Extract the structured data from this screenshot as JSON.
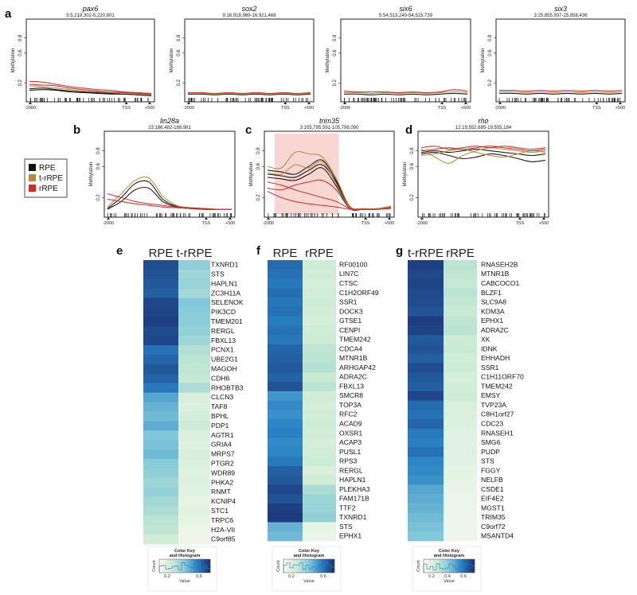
{
  "figure": {
    "panel_labels": {
      "a": "a",
      "b": "b",
      "c": "c",
      "d": "d",
      "e": "e",
      "f": "f",
      "g": "g"
    },
    "legend": [
      {
        "label": "RPE",
        "color": "#111111"
      },
      {
        "label": "t-rRPE",
        "color": "#b8893a"
      },
      {
        "label": "rRPE",
        "color": "#c8302c"
      }
    ]
  },
  "chart_data": [
    {
      "type": "line",
      "title": "pax6",
      "subtitle": "5:5,218,302-5,220,801",
      "ylabel": "Methylation",
      "yticks": [
        "0.2",
        "0.6",
        "0.8"
      ],
      "ylim": [
        0,
        1
      ],
      "xticks": [
        "-2000",
        "TSS",
        "+500"
      ],
      "highlight": null,
      "series": [
        {
          "name": "RPE",
          "values": [
            0.12,
            0.13,
            0.11,
            0.09,
            0.08,
            0.07,
            0.06,
            0.05,
            0.04,
            0.03
          ]
        },
        {
          "name": "RPE",
          "values": [
            0.1,
            0.11,
            0.1,
            0.08,
            0.07,
            0.06,
            0.05,
            0.05,
            0.04,
            0.03
          ]
        },
        {
          "name": "t-rRPE",
          "values": [
            0.16,
            0.15,
            0.13,
            0.11,
            0.09,
            0.08,
            0.07,
            0.06,
            0.05,
            0.04
          ]
        },
        {
          "name": "rRPE",
          "values": [
            0.22,
            0.21,
            0.18,
            0.15,
            0.13,
            0.11,
            0.1,
            0.08,
            0.07,
            0.06
          ]
        },
        {
          "name": "rRPE",
          "values": [
            0.18,
            0.17,
            0.16,
            0.13,
            0.11,
            0.09,
            0.08,
            0.07,
            0.06,
            0.05
          ]
        }
      ]
    },
    {
      "type": "line",
      "title": "sox2",
      "subtitle": "9:16,918,969-16,921,468",
      "ylabel": "Methylation",
      "yticks": [
        "0.2",
        "0.6",
        "0.8"
      ],
      "ylim": [
        0,
        1
      ],
      "xticks": [
        "-2000",
        "TSS",
        "+500"
      ],
      "highlight": null,
      "series": [
        {
          "name": "RPE",
          "values": [
            0.05,
            0.05,
            0.04,
            0.05,
            0.04,
            0.05,
            0.04,
            0.05,
            0.04,
            0.05
          ]
        },
        {
          "name": "t-rRPE",
          "values": [
            0.06,
            0.06,
            0.05,
            0.06,
            0.05,
            0.06,
            0.05,
            0.06,
            0.05,
            0.06
          ]
        },
        {
          "name": "rRPE",
          "values": [
            0.07,
            0.07,
            0.06,
            0.07,
            0.06,
            0.07,
            0.06,
            0.07,
            0.06,
            0.07
          ]
        }
      ]
    },
    {
      "type": "line",
      "title": "six6",
      "subtitle": "5:54,513,240-54,515,739",
      "ylabel": "Methylation",
      "yticks": [
        "0.2",
        "0.6",
        "0.8"
      ],
      "ylim": [
        0,
        1
      ],
      "xticks": [
        "-2000",
        "TSS",
        "+500"
      ],
      "highlight": null,
      "series": [
        {
          "name": "RPE",
          "values": [
            0.05,
            0.05,
            0.04,
            0.05,
            0.04,
            0.05,
            0.04,
            0.05,
            0.06,
            0.05
          ]
        },
        {
          "name": "t-rRPE",
          "values": [
            0.07,
            0.07,
            0.06,
            0.07,
            0.06,
            0.07,
            0.06,
            0.07,
            0.08,
            0.07
          ]
        },
        {
          "name": "rRPE",
          "values": [
            0.09,
            0.08,
            0.08,
            0.08,
            0.07,
            0.08,
            0.07,
            0.08,
            0.11,
            0.09
          ]
        }
      ]
    },
    {
      "type": "line",
      "title": "six3",
      "subtitle": "3:25,855,937-25,858,436",
      "ylabel": "Methylation",
      "yticks": [
        "0.2",
        "0.6",
        "0.8"
      ],
      "ylim": [
        0,
        1
      ],
      "xticks": [
        "-2000",
        "TSS",
        "+500"
      ],
      "highlight": null,
      "series": [
        {
          "name": "RPE",
          "values": [
            0.06,
            0.06,
            0.05,
            0.06,
            0.05,
            0.06,
            0.05,
            0.06,
            0.05,
            0.06
          ]
        },
        {
          "name": "t-rRPE",
          "values": [
            0.08,
            0.08,
            0.07,
            0.08,
            0.07,
            0.08,
            0.07,
            0.08,
            0.07,
            0.08
          ]
        },
        {
          "name": "rRPE",
          "values": [
            0.1,
            0.1,
            0.09,
            0.1,
            0.09,
            0.1,
            0.09,
            0.1,
            0.09,
            0.1
          ]
        }
      ]
    },
    {
      "type": "line",
      "title": "lin28a",
      "subtitle": "23:186,482-188,981",
      "ylabel": "Methylation",
      "yticks": [
        "0.2",
        "0.6",
        "0.8"
      ],
      "ylim": [
        0,
        1
      ],
      "xticks": [
        "-2000",
        "TSS",
        "+500"
      ],
      "highlight": null,
      "series": [
        {
          "name": "RPE",
          "values": [
            0.05,
            0.15,
            0.3,
            0.32,
            0.15,
            0.08,
            0.06,
            0.05,
            0.05,
            0.05
          ]
        },
        {
          "name": "RPE",
          "values": [
            0.06,
            0.2,
            0.38,
            0.4,
            0.18,
            0.09,
            0.06,
            0.05,
            0.05,
            0.05
          ]
        },
        {
          "name": "t-rRPE",
          "values": [
            0.08,
            0.25,
            0.42,
            0.45,
            0.22,
            0.1,
            0.07,
            0.06,
            0.05,
            0.05
          ]
        },
        {
          "name": "rRPE",
          "values": [
            0.25,
            0.2,
            0.15,
            0.12,
            0.1,
            0.08,
            0.07,
            0.06,
            0.05,
            0.05
          ]
        },
        {
          "name": "rRPE",
          "values": [
            0.18,
            0.15,
            0.12,
            0.1,
            0.08,
            0.07,
            0.06,
            0.05,
            0.05,
            0.05
          ]
        }
      ]
    },
    {
      "type": "line",
      "title": "trim35",
      "subtitle": "3:105,795,591-105,798,090",
      "ylabel": "Methylation",
      "yticks": [
        "0.2",
        "0.6",
        "0.8"
      ],
      "ylim": [
        0,
        1
      ],
      "xticks": [
        "-2000",
        "TSS",
        "+500"
      ],
      "highlight": {
        "from": 0.5,
        "to": 5.2
      },
      "series": [
        {
          "name": "RPE",
          "values": [
            0.55,
            0.53,
            0.5,
            0.6,
            0.68,
            0.42,
            0.08,
            0.05,
            0.05,
            0.08
          ]
        },
        {
          "name": "RPE",
          "values": [
            0.5,
            0.48,
            0.46,
            0.55,
            0.62,
            0.4,
            0.07,
            0.05,
            0.05,
            0.08
          ]
        },
        {
          "name": "RPE",
          "values": [
            0.46,
            0.44,
            0.42,
            0.5,
            0.58,
            0.35,
            0.06,
            0.05,
            0.05,
            0.07
          ]
        },
        {
          "name": "t-rRPE",
          "values": [
            0.6,
            0.58,
            0.78,
            0.76,
            0.72,
            0.45,
            0.09,
            0.06,
            0.06,
            0.09
          ]
        },
        {
          "name": "t-rRPE",
          "values": [
            0.52,
            0.5,
            0.62,
            0.58,
            0.66,
            0.38,
            0.07,
            0.05,
            0.05,
            0.08
          ]
        },
        {
          "name": "rRPE",
          "values": [
            0.4,
            0.36,
            0.3,
            0.25,
            0.2,
            0.15,
            0.06,
            0.05,
            0.05,
            0.07
          ]
        },
        {
          "name": "rRPE",
          "values": [
            0.28,
            0.2,
            0.15,
            0.12,
            0.1,
            0.08,
            0.05,
            0.05,
            0.05,
            0.06
          ]
        },
        {
          "name": "rRPE",
          "values": [
            0.32,
            0.3,
            0.36,
            0.4,
            0.42,
            0.3,
            0.06,
            0.05,
            0.05,
            0.07
          ]
        }
      ]
    },
    {
      "type": "line",
      "title": "rho",
      "subtitle": "12:19,552,685-19,555,184",
      "ylabel": "Methylation",
      "yticks": [
        "0.2",
        "0.6",
        "0.8"
      ],
      "ylim": [
        0,
        1
      ],
      "xticks": [
        "-2000",
        "TSS",
        "+500"
      ],
      "highlight": null,
      "series": [
        {
          "name": "RPE",
          "values": [
            0.76,
            0.78,
            0.74,
            0.7,
            0.72,
            0.76,
            0.74,
            0.7,
            0.66,
            0.68
          ]
        },
        {
          "name": "RPE",
          "values": [
            0.78,
            0.8,
            0.78,
            0.8,
            0.82,
            0.8,
            0.78,
            0.76,
            0.74,
            0.76
          ]
        },
        {
          "name": "t-rRPE",
          "values": [
            0.82,
            0.72,
            0.64,
            0.74,
            0.8,
            0.84,
            0.82,
            0.8,
            0.78,
            0.8
          ]
        },
        {
          "name": "t-rRPE",
          "values": [
            0.74,
            0.76,
            0.8,
            0.82,
            0.78,
            0.74,
            0.72,
            0.76,
            0.8,
            0.78
          ]
        },
        {
          "name": "rRPE",
          "values": [
            0.8,
            0.82,
            0.84,
            0.82,
            0.84,
            0.86,
            0.84,
            0.82,
            0.8,
            0.82
          ]
        },
        {
          "name": "rRPE",
          "values": [
            0.84,
            0.86,
            0.82,
            0.84,
            0.86,
            0.84,
            0.86,
            0.84,
            0.82,
            0.84
          ]
        }
      ]
    },
    {
      "type": "heatmap",
      "columns": [
        "RPE",
        "t-rRPE"
      ],
      "rows": [
        "TXNRD1",
        "STS",
        "HAPLN1",
        "ZC3H11A",
        "SELENOK",
        "PIK3CD",
        "TMEM201",
        "RERGL",
        "FBXL13",
        "PCNX1",
        "UBE2G1",
        "MAGOH",
        "CDH6",
        "RHOBTB3",
        "CLCN3",
        "TAF8",
        "BPHL",
        "PDP1",
        "AGTR1",
        "GRIA4",
        "MRPS7",
        "PTGR2",
        "WDR89",
        "PHKA2",
        "RNMT",
        "KCNIP4",
        "STC1",
        "TRPC6",
        "H2A-VII",
        "C9orf85"
      ],
      "values": [
        [
          0.92,
          0.45
        ],
        [
          0.9,
          0.4
        ],
        [
          0.88,
          0.42
        ],
        [
          0.86,
          0.38
        ],
        [
          0.94,
          0.5
        ],
        [
          0.95,
          0.48
        ],
        [
          0.96,
          0.46
        ],
        [
          0.93,
          0.44
        ],
        [
          0.94,
          0.4
        ],
        [
          0.8,
          0.32
        ],
        [
          0.84,
          0.3
        ],
        [
          0.88,
          0.28
        ],
        [
          0.85,
          0.26
        ],
        [
          0.78,
          0.35
        ],
        [
          0.62,
          0.16
        ],
        [
          0.58,
          0.14
        ],
        [
          0.55,
          0.18
        ],
        [
          0.6,
          0.22
        ],
        [
          0.5,
          0.15
        ],
        [
          0.52,
          0.12
        ],
        [
          0.55,
          0.16
        ],
        [
          0.48,
          0.14
        ],
        [
          0.45,
          0.12
        ],
        [
          0.4,
          0.13
        ],
        [
          0.44,
          0.1
        ],
        [
          0.38,
          0.08
        ],
        [
          0.35,
          0.1
        ],
        [
          0.3,
          0.08
        ],
        [
          0.28,
          0.05
        ],
        [
          0.2,
          0.03
        ]
      ],
      "color_key": {
        "title": "Color Key\nand Histogram",
        "xlabel": "Value",
        "ylabel": "Count",
        "ticks": [
          "0.2",
          "0.6"
        ]
      }
    },
    {
      "type": "heatmap",
      "columns": [
        "RPE",
        "rRPE"
      ],
      "rows": [
        "RF00100",
        "LIN7C",
        "CTSC",
        "C1H2ORF49",
        "SSR1",
        "DOCK3",
        "GTSE1",
        "CENPI",
        "TMEM242",
        "CDCA4",
        "MTNR1B",
        "ARHGAP42",
        "ADRA2C",
        "FBXL13",
        "SMCR8",
        "TOP3A",
        "RFC2",
        "ACAD9",
        "OXSR1",
        "ACAP3",
        "PUSL1",
        "RPS3",
        "RERGL",
        "HAPLN1",
        "PLEKHA3",
        "FAM171B",
        "TTF2",
        "TXNRD1",
        "STS",
        "EPHX1"
      ],
      "values": [
        [
          0.82,
          0.22
        ],
        [
          0.8,
          0.2
        ],
        [
          0.78,
          0.18
        ],
        [
          0.81,
          0.2
        ],
        [
          0.79,
          0.22
        ],
        [
          0.8,
          0.19
        ],
        [
          0.77,
          0.18
        ],
        [
          0.8,
          0.21
        ],
        [
          0.78,
          0.22
        ],
        [
          0.84,
          0.28
        ],
        [
          0.86,
          0.3
        ],
        [
          0.88,
          0.32
        ],
        [
          0.85,
          0.25
        ],
        [
          0.9,
          0.3
        ],
        [
          0.68,
          0.2
        ],
        [
          0.72,
          0.18
        ],
        [
          0.7,
          0.2
        ],
        [
          0.74,
          0.22
        ],
        [
          0.76,
          0.2
        ],
        [
          0.72,
          0.18
        ],
        [
          0.74,
          0.2
        ],
        [
          0.78,
          0.22
        ],
        [
          0.86,
          0.15
        ],
        [
          0.88,
          0.2
        ],
        [
          0.94,
          0.35
        ],
        [
          0.9,
          0.4
        ],
        [
          0.96,
          0.42
        ],
        [
          0.98,
          0.45
        ],
        [
          0.58,
          0.08
        ],
        [
          0.55,
          0.05
        ]
      ],
      "color_key": {
        "title": "Color Key\nand Histogram",
        "xlabel": "Value",
        "ylabel": "Count",
        "ticks": [
          "0.2",
          "0.6"
        ]
      }
    },
    {
      "type": "heatmap",
      "columns": [
        "t-rRPE",
        "rRPE"
      ],
      "rows": [
        "RNASEH2B",
        "MTNR1B",
        "CABCOCO1",
        "BLZF1",
        "SLC9A8",
        "KDM3A",
        "EPHX1",
        "ADRA2C",
        "XK",
        "IDNK",
        "EHHADH",
        "SSR1",
        "C1H11ORF70",
        "TMEM242",
        "EMSY",
        "TVP23A",
        "C8H1orf27",
        "CDC23",
        "RNASEH1",
        "SMG6",
        "PUDP",
        "STS",
        "FGGY",
        "NELFB",
        "CSDE1",
        "EIF4E2",
        "MGST1",
        "TRIM35",
        "C9orf72",
        "MSANTD4"
      ],
      "values": [
        [
          0.96,
          0.3
        ],
        [
          0.94,
          0.28
        ],
        [
          0.95,
          0.26
        ],
        [
          0.93,
          0.3
        ],
        [
          0.92,
          0.27
        ],
        [
          0.9,
          0.25
        ],
        [
          0.97,
          0.28
        ],
        [
          0.95,
          0.3
        ],
        [
          0.88,
          0.22
        ],
        [
          0.9,
          0.24
        ],
        [
          0.86,
          0.2
        ],
        [
          0.92,
          0.22
        ],
        [
          0.88,
          0.18
        ],
        [
          0.86,
          0.2
        ],
        [
          0.94,
          0.22
        ],
        [
          0.82,
          0.16
        ],
        [
          0.8,
          0.15
        ],
        [
          0.84,
          0.14
        ],
        [
          0.78,
          0.12
        ],
        [
          0.76,
          0.1
        ],
        [
          0.8,
          0.12
        ],
        [
          0.74,
          0.1
        ],
        [
          0.72,
          0.09
        ],
        [
          0.7,
          0.08
        ],
        [
          0.62,
          0.07
        ],
        [
          0.6,
          0.06
        ],
        [
          0.58,
          0.05
        ],
        [
          0.55,
          0.04
        ],
        [
          0.52,
          0.04
        ],
        [
          0.5,
          0.03
        ]
      ],
      "color_key": {
        "title": "Color Key\nand Histogram",
        "xlabel": "Value",
        "ylabel": "Count",
        "ticks": [
          "0.2",
          "0.4",
          "0.6"
        ]
      }
    }
  ]
}
